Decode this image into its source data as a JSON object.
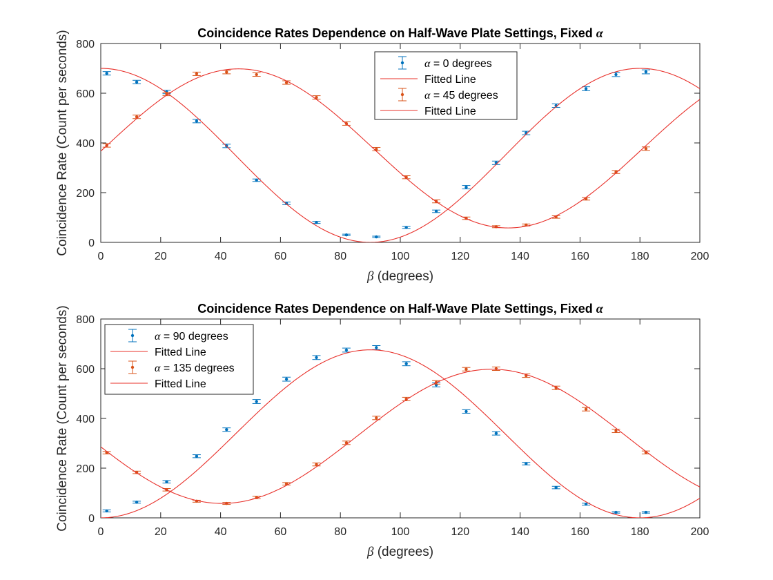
{
  "chart_data": [
    {
      "type": "scatter",
      "title": "Coincidence Rates Dependence on Half-Wave Plate Settings, Fixed",
      "title_symbol": "α",
      "xlabel_symbol": "β",
      "xlabel": "(degrees)",
      "ylabel": "Coincidence Rate (Count per seconds)",
      "xlim": [
        0,
        200
      ],
      "ylim": [
        0,
        800
      ],
      "xticks": [
        0,
        20,
        40,
        60,
        80,
        100,
        120,
        140,
        160,
        180,
        200
      ],
      "yticks": [
        0,
        200,
        400,
        600,
        800
      ],
      "grid": false,
      "legend_position": "top-center",
      "series": [
        {
          "name": "= 0 degrees",
          "name_symbol": "α",
          "kind": "errorbar",
          "color": "#0072BD",
          "x": [
            2,
            12,
            22,
            32,
            42,
            52,
            62,
            72,
            82,
            92,
            102,
            112,
            122,
            132,
            142,
            152,
            162,
            172,
            182
          ],
          "y": [
            680,
            645,
            605,
            488,
            388,
            250,
            157,
            80,
            30,
            22,
            60,
            125,
            222,
            320,
            440,
            550,
            618,
            675,
            686
          ],
          "err": [
            7,
            7,
            7,
            7,
            7,
            5,
            5,
            4,
            3,
            3,
            4,
            5,
            7,
            7,
            7,
            7,
            8,
            8,
            8
          ]
        },
        {
          "name": "Fitted Line",
          "kind": "fit",
          "color": "#E8302A",
          "fit": {
            "amplitude": 350,
            "offset": 350,
            "omega_deg": 2,
            "phase_deg": 0
          },
          "x_range": [
            0,
            200
          ]
        },
        {
          "name": "= 45 degrees",
          "name_symbol": "α",
          "kind": "errorbar",
          "color": "#D95319",
          "x": [
            2,
            12,
            22,
            32,
            42,
            52,
            62,
            72,
            82,
            92,
            102,
            112,
            122,
            132,
            142,
            152,
            162,
            172,
            182
          ],
          "y": [
            390,
            505,
            597,
            678,
            685,
            675,
            643,
            583,
            478,
            375,
            262,
            165,
            97,
            63,
            70,
            102,
            175,
            283,
            377
          ],
          "err": [
            7,
            7,
            7,
            7,
            7,
            7,
            7,
            7,
            7,
            7,
            6,
            6,
            5,
            4,
            4,
            5,
            5,
            6,
            7
          ]
        },
        {
          "name": "Fitted Line",
          "kind": "fit",
          "color": "#E8302A",
          "fit": {
            "amplitude": 320,
            "offset": 378,
            "omega_deg": 2,
            "phase_deg": 92
          },
          "x_range": [
            0,
            200
          ]
        }
      ]
    },
    {
      "type": "scatter",
      "title": "Coincidence Rates Dependence on Half-Wave Plate Settings, Fixed",
      "title_symbol": "α",
      "xlabel_symbol": "β",
      "xlabel": "(degrees)",
      "ylabel": "Coincidence Rate (Count per seconds)",
      "xlim": [
        0,
        200
      ],
      "ylim": [
        0,
        800
      ],
      "xticks": [
        0,
        20,
        40,
        60,
        80,
        100,
        120,
        140,
        160,
        180,
        200
      ],
      "yticks": [
        0,
        200,
        400,
        600,
        800
      ],
      "grid": false,
      "legend_position": "top-left",
      "series": [
        {
          "name": "= 90 degrees",
          "name_symbol": "α",
          "kind": "errorbar",
          "color": "#0072BD",
          "x": [
            2,
            12,
            22,
            32,
            42,
            52,
            62,
            72,
            82,
            92,
            102,
            112,
            122,
            132,
            142,
            152,
            162,
            172,
            182
          ],
          "y": [
            28,
            63,
            145,
            248,
            355,
            468,
            558,
            645,
            675,
            685,
            620,
            535,
            428,
            340,
            218,
            122,
            55,
            22,
            22
          ],
          "err": [
            4,
            4,
            5,
            6,
            7,
            8,
            8,
            8,
            8,
            8,
            8,
            8,
            7,
            7,
            5,
            5,
            4,
            3,
            3
          ]
        },
        {
          "name": "Fitted Line",
          "kind": "fit",
          "color": "#E8302A",
          "fit": {
            "amplitude": 338,
            "offset": 338,
            "omega_deg": 2,
            "phase_deg": 180
          },
          "x_range": [
            0,
            200
          ]
        },
        {
          "name": "= 135 degrees",
          "name_symbol": "α",
          "kind": "errorbar",
          "color": "#D95319",
          "x": [
            2,
            12,
            22,
            32,
            42,
            52,
            62,
            72,
            82,
            92,
            102,
            112,
            122,
            132,
            142,
            152,
            162,
            172,
            182
          ],
          "y": [
            262,
            183,
            113,
            67,
            58,
            82,
            137,
            215,
            302,
            402,
            478,
            545,
            598,
            600,
            572,
            523,
            437,
            350,
            263
          ],
          "err": [
            5,
            5,
            5,
            4,
            4,
            5,
            5,
            6,
            7,
            7,
            7,
            7,
            7,
            7,
            7,
            7,
            7,
            7,
            6
          ]
        },
        {
          "name": "Fitted Line",
          "kind": "fit",
          "color": "#E8302A",
          "fit": {
            "amplitude": 270,
            "offset": 328,
            "omega_deg": 2,
            "phase_deg": 261
          },
          "x_range": [
            0,
            200
          ]
        }
      ]
    }
  ]
}
